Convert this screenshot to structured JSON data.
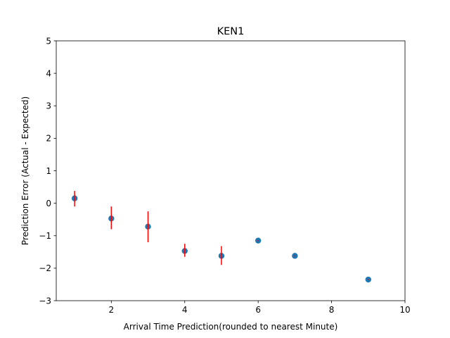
{
  "chart_data": {
    "type": "scatter",
    "title": "KEN1",
    "xlabel": "Arrival Time Prediction(rounded to nearest Minute)",
    "ylabel": "Prediction Error (Actual - Expected)",
    "xlim": [
      0.5,
      10
    ],
    "ylim": [
      -3,
      5
    ],
    "xticks": [
      2,
      4,
      6,
      8,
      10
    ],
    "yticks": [
      -3,
      -2,
      -1,
      0,
      1,
      2,
      3,
      4,
      5
    ],
    "grid": false,
    "legend": "none",
    "marker_color": "#1f77b4",
    "errorbar_color": "#ff0000",
    "points": [
      {
        "x": 1,
        "y": 0.15,
        "err_low": -0.1,
        "err_high": 0.38
      },
      {
        "x": 2,
        "y": -0.47,
        "err_low": -0.8,
        "err_high": -0.1
      },
      {
        "x": 3,
        "y": -0.72,
        "err_low": -1.2,
        "err_high": -0.25
      },
      {
        "x": 4,
        "y": -1.47,
        "err_low": -1.65,
        "err_high": -1.25
      },
      {
        "x": 5,
        "y": -1.62,
        "err_low": -1.9,
        "err_high": -1.32
      },
      {
        "x": 6,
        "y": -1.15,
        "err_low": -1.15,
        "err_high": -1.15
      },
      {
        "x": 7,
        "y": -1.62,
        "err_low": -1.62,
        "err_high": -1.62
      },
      {
        "x": 9,
        "y": -2.35,
        "err_low": -2.35,
        "err_high": -2.35
      }
    ]
  }
}
